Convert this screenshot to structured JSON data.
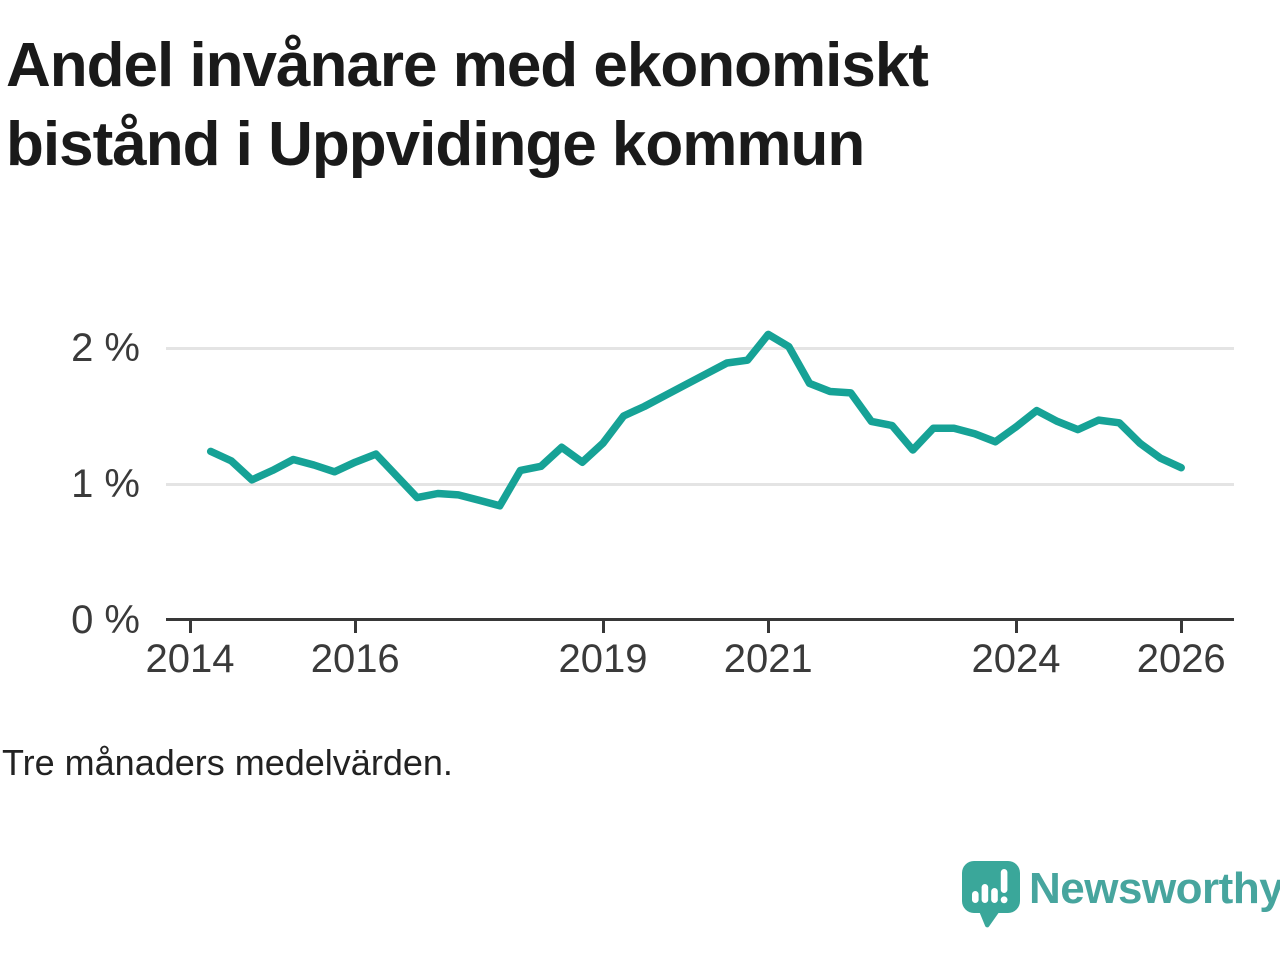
{
  "title": {
    "line1": "Andel invånare med ekonomiskt",
    "line2": "bistånd i Uppvidinge kommun"
  },
  "footer": {
    "note": "Tre månaders medelvärden."
  },
  "logo": {
    "text": "Newsworthy",
    "icon": "speech-bubble-with-bar-chart-and-exclamation"
  },
  "colors": {
    "line": "#16a296",
    "grid": "#e4e4e4",
    "axis": "#383838",
    "title_text": "#1a1a1a",
    "tick_text": "#3a3a3a",
    "note_text": "#222222",
    "logo_icon": "#3aa79a",
    "logo_text": "#47a59e",
    "background": "#ffffff"
  },
  "chart_data": {
    "type": "line",
    "title": "Andel invånare med ekonomiskt bistånd i Uppvidinge kommun",
    "subtitle": "Tre månaders medelvärden.",
    "xlabel": "",
    "ylabel": "",
    "unit": "%",
    "grid": "horizontal",
    "legend_position": "none",
    "xlim": [
      2013.7,
      2026.65
    ],
    "ylim": [
      0,
      2.35
    ],
    "x_ticks": [
      2014,
      2016,
      2019,
      2021,
      2024,
      2026
    ],
    "y_ticks": [
      {
        "value": 0,
        "label": "0 %"
      },
      {
        "value": 1,
        "label": "1 %"
      },
      {
        "value": 2,
        "label": "2 %"
      }
    ],
    "series": [
      {
        "name": "Uppvidinge kommun",
        "x": [
          2014.25,
          2014.5,
          2014.75,
          2015.0,
          2015.25,
          2015.5,
          2015.75,
          2016.0,
          2016.25,
          2016.5,
          2016.75,
          2017.0,
          2017.25,
          2017.5,
          2017.75,
          2018.0,
          2018.25,
          2018.5,
          2018.75,
          2019.0,
          2019.25,
          2019.5,
          2019.75,
          2020.0,
          2020.25,
          2020.5,
          2020.75,
          2021.0,
          2021.25,
          2021.5,
          2021.75,
          2022.0,
          2022.25,
          2022.5,
          2022.75,
          2023.0,
          2023.25,
          2023.5,
          2023.75,
          2024.0,
          2024.25,
          2024.5,
          2024.75,
          2025.0,
          2025.25,
          2025.5,
          2025.75,
          2026.0
        ],
        "values": [
          1.24,
          1.17,
          1.03,
          1.1,
          1.18,
          1.14,
          1.09,
          1.16,
          1.22,
          1.06,
          0.9,
          0.93,
          0.92,
          0.88,
          0.84,
          1.1,
          1.13,
          1.27,
          1.16,
          1.3,
          1.5,
          1.57,
          1.65,
          1.73,
          1.81,
          1.89,
          1.91,
          2.1,
          2.01,
          1.74,
          1.68,
          1.67,
          1.46,
          1.43,
          1.25,
          1.41,
          1.41,
          1.37,
          1.31,
          1.42,
          1.54,
          1.46,
          1.4,
          1.47,
          1.45,
          1.3,
          1.19,
          1.12
        ]
      }
    ]
  }
}
